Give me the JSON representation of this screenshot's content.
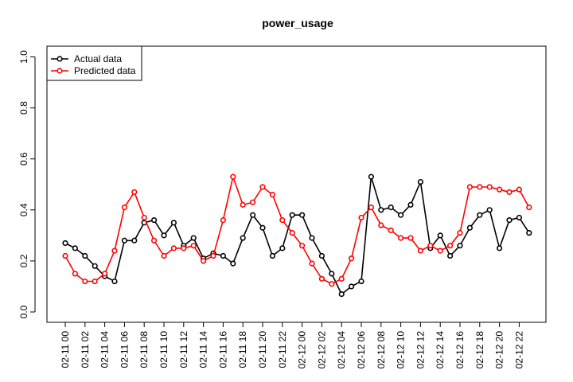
{
  "chart_data": {
    "type": "line",
    "title": "power_usage",
    "xlabel": "",
    "ylabel": "",
    "ylim": [
      0.0,
      1.0
    ],
    "yticks": [
      "0.0",
      "0.2",
      "0.4",
      "0.6",
      "0.8",
      "1.0"
    ],
    "grid": false,
    "legend_position": "top-left",
    "x": [
      "02-11 00",
      "02-11 01",
      "02-11 02",
      "02-11 03",
      "02-11 04",
      "02-11 05",
      "02-11 06",
      "02-11 07",
      "02-11 08",
      "02-11 09",
      "02-11 10",
      "02-11 11",
      "02-11 12",
      "02-11 13",
      "02-11 14",
      "02-11 15",
      "02-11 16",
      "02-11 17",
      "02-11 18",
      "02-11 19",
      "02-11 20",
      "02-11 21",
      "02-11 22",
      "02-11 23",
      "02-12 00",
      "02-12 01",
      "02-12 02",
      "02-12 03",
      "02-12 04",
      "02-12 05",
      "02-12 06",
      "02-12 07",
      "02-12 08",
      "02-12 09",
      "02-12 10",
      "02-12 11",
      "02-12 12",
      "02-12 13",
      "02-12 14",
      "02-12 15",
      "02-12 16",
      "02-12 17",
      "02-12 18",
      "02-12 19",
      "02-12 20",
      "02-12 21",
      "02-12 22",
      "02-12 23"
    ],
    "x_tick_labels": [
      "02-11 00",
      "02-11 02",
      "02-11 04",
      "02-11 06",
      "02-11 08",
      "02-11 10",
      "02-11 12",
      "02-11 14",
      "02-11 16",
      "02-11 18",
      "02-11 20",
      "02-11 22",
      "02-12 00",
      "02-12 02",
      "02-12 04",
      "02-12 06",
      "02-12 08",
      "02-12 10",
      "02-12 12",
      "02-12 14",
      "02-12 16",
      "02-12 18",
      "02-12 20",
      "02-12 22"
    ],
    "series": [
      {
        "name": "Actual data",
        "color": "#000000",
        "values": [
          0.27,
          0.25,
          0.22,
          0.18,
          0.14,
          0.12,
          0.28,
          0.28,
          0.35,
          0.36,
          0.3,
          0.35,
          0.26,
          0.29,
          0.21,
          0.23,
          0.22,
          0.19,
          0.29,
          0.38,
          0.33,
          0.22,
          0.25,
          0.38,
          0.38,
          0.29,
          0.22,
          0.15,
          0.07,
          0.1,
          0.12,
          0.53,
          0.4,
          0.41,
          0.38,
          0.42,
          0.51,
          0.25,
          0.3,
          0.22,
          0.26,
          0.33,
          0.38,
          0.4,
          0.25,
          0.36,
          0.37,
          0.31
        ]
      },
      {
        "name": "Predicted data",
        "color": "#ff0000",
        "values": [
          0.22,
          0.15,
          0.12,
          0.12,
          0.15,
          0.24,
          0.41,
          0.47,
          0.37,
          0.28,
          0.22,
          0.25,
          0.25,
          0.26,
          0.2,
          0.22,
          0.36,
          0.53,
          0.42,
          0.43,
          0.49,
          0.46,
          0.36,
          0.31,
          0.26,
          0.19,
          0.13,
          0.11,
          0.13,
          0.21,
          0.37,
          0.41,
          0.34,
          0.32,
          0.29,
          0.29,
          0.24,
          0.26,
          0.24,
          0.26,
          0.31,
          0.49,
          0.49,
          0.49,
          0.48,
          0.47,
          0.48,
          0.41
        ]
      }
    ]
  }
}
